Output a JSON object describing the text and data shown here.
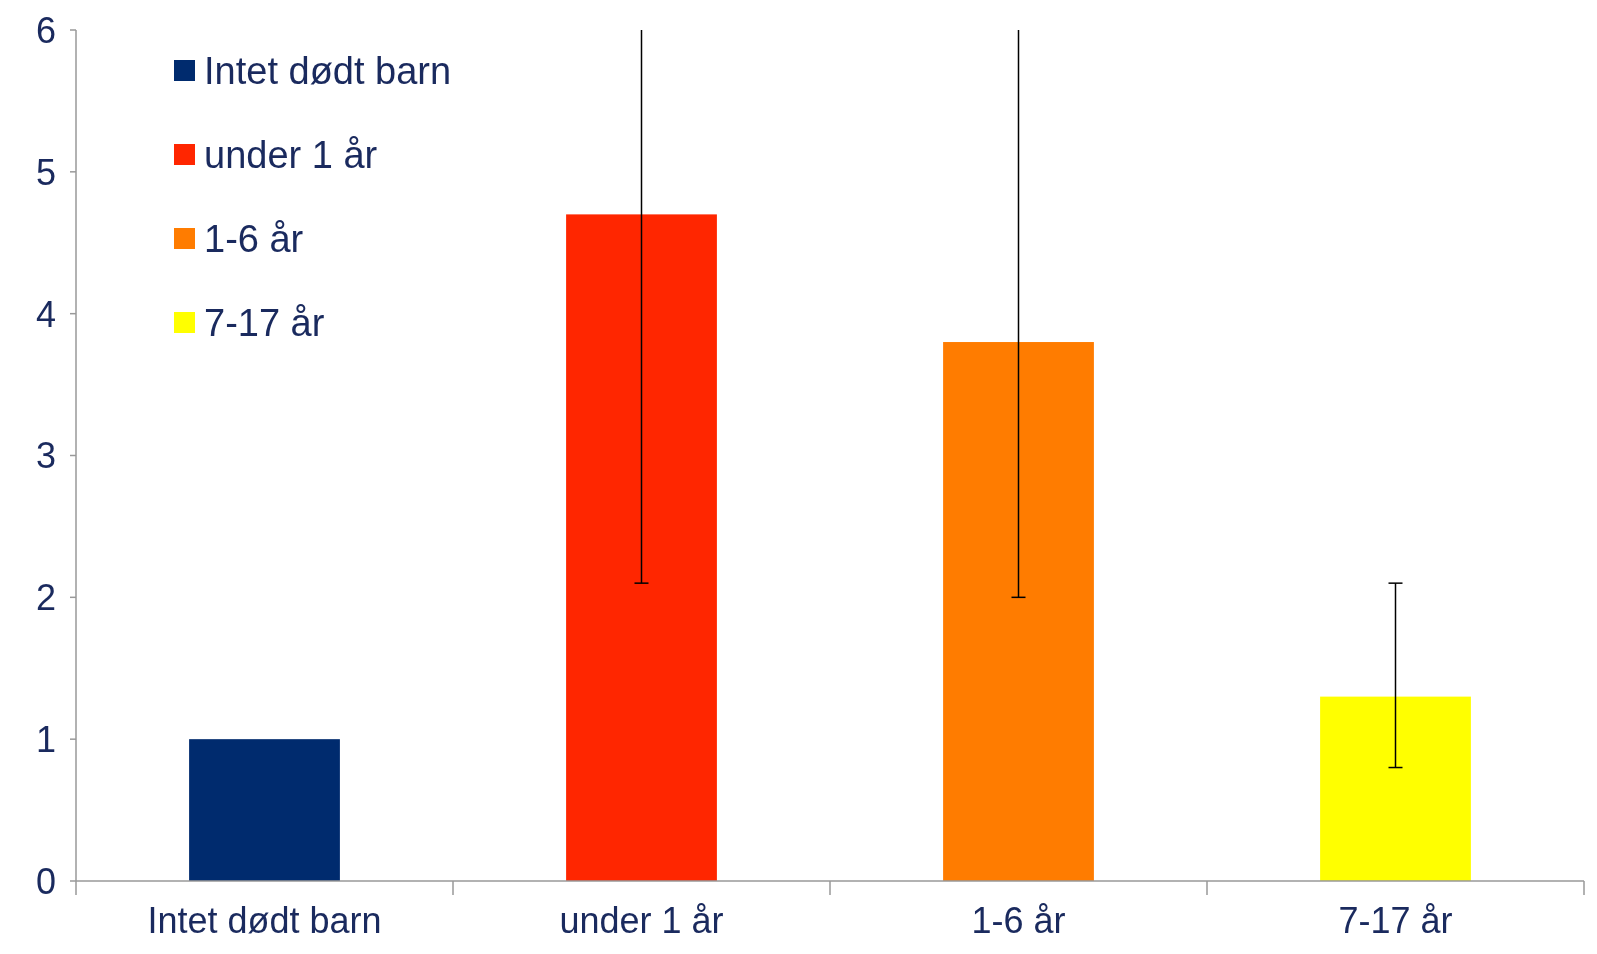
{
  "chart_data": {
    "type": "bar",
    "categories": [
      "Intet dødt barn",
      "under 1 år",
      "1-6 år",
      "7-17 år"
    ],
    "series": [
      {
        "name": "Intet dødt barn",
        "color": "#002b6e",
        "values": [
          1,
          null,
          null,
          null
        ]
      },
      {
        "name": "under 1 år",
        "color": "#ff2600",
        "values": [
          null,
          4.7,
          null,
          null
        ],
        "errors": [
          null,
          [
            2.1,
            6
          ],
          null,
          null
        ]
      },
      {
        "name": "1-6 år",
        "color": "#ff7c00",
        "values": [
          null,
          null,
          3.8,
          null
        ],
        "errors": [
          null,
          null,
          [
            2.0,
            6
          ],
          null
        ]
      },
      {
        "name": "7-17 år",
        "color": "#ffff00",
        "values": [
          null,
          null,
          null,
          1.3
        ],
        "errors": [
          null,
          null,
          null,
          [
            0.8,
            2.1
          ]
        ]
      }
    ],
    "ylim": [
      0,
      6
    ],
    "yticks": [
      0,
      1,
      2,
      3,
      4,
      5,
      6
    ],
    "grid": false,
    "legend": "top left"
  }
}
